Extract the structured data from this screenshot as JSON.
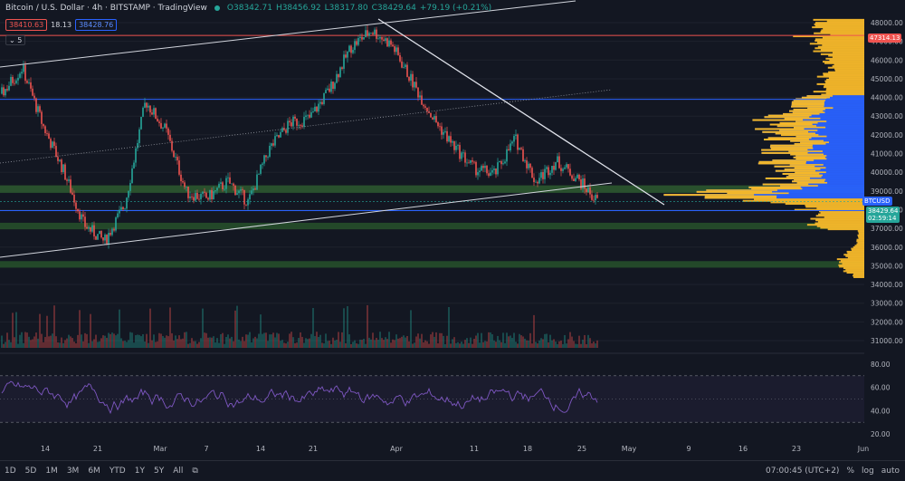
{
  "header": {
    "title": "Bitcoin / U.S. Dollar · 4h · BITSTAMP · TradingView",
    "ohlc": [
      "O38342.71",
      "H38456.92",
      "L38317.80",
      "C38429.64",
      "+79.19 (+0.21%)"
    ]
  },
  "trade": {
    "sell": "38410.63",
    "spread": "18.13",
    "buy": "38428.76"
  },
  "indicator_count": "5",
  "price_axis": [
    "48000.00",
    "47000.00",
    "46000.00",
    "45000.00",
    "44000.00",
    "43000.00",
    "42000.00",
    "41000.00",
    "40000.00",
    "39000.00",
    "38000.00",
    "37000.00",
    "36000.00",
    "35000.00",
    "34000.00",
    "33000.00",
    "32000.00",
    "31000.00"
  ],
  "rsi_axis": [
    "80.00",
    "60.00",
    "40.00",
    "20.00"
  ],
  "tags": {
    "red_level": "47314.13",
    "symbol": "BTCUSD",
    "last": "38429.64",
    "countdown": "02:59:14"
  },
  "time_axis": [
    "14",
    "21",
    "Mar",
    "7",
    "14",
    "21",
    "Apr",
    "11",
    "18",
    "25",
    "May",
    "9",
    "16",
    "23",
    "Jun"
  ],
  "bottom": {
    "timeframes": [
      "1D",
      "5D",
      "1M",
      "3M",
      "6M",
      "YTD",
      "1Y",
      "5Y",
      "All"
    ],
    "clock": "07:00:45 (UTC+2)",
    "pct": "%",
    "log": "log",
    "auto": "auto"
  },
  "colors": {
    "up": "#26a69a",
    "down": "#ef5350",
    "profile": "#f5b82a",
    "profile_value_area": "#2962ff",
    "rsi": "#7e57c2"
  },
  "chart_data": {
    "type": "candlestick",
    "symbol": "BTCUSD",
    "interval": "4h",
    "approx_range": [
      34300,
      48200
    ],
    "approx_closes": [
      44200,
      45600,
      42500,
      40100,
      37200,
      36300,
      38300,
      43800,
      42200,
      38900,
      38600,
      39500,
      38400,
      41200,
      42600,
      42900,
      44500,
      46700,
      47600,
      46800,
      44800,
      42900,
      41400,
      40200,
      39900,
      41800,
      39500,
      40600,
      39700,
      38430
    ],
    "levels": {
      "red": 47314.13,
      "blue_top": 43900,
      "blue_bottom": 37950,
      "zone1": [
        38900,
        39300
      ],
      "zone2": [
        36950,
        37300
      ],
      "zone3": [
        34900,
        35250
      ]
    },
    "rsi_levels": [
      70,
      30
    ]
  }
}
